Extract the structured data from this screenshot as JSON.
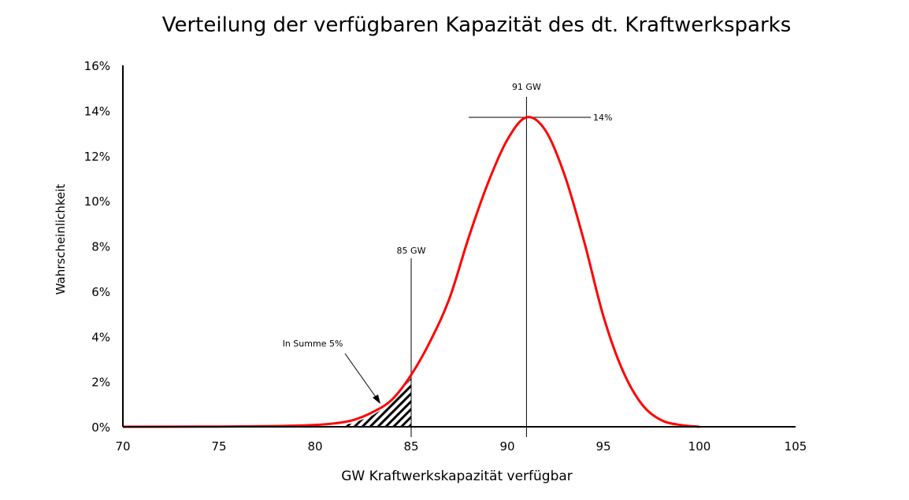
{
  "chart_data": {
    "type": "line",
    "title": "Verteilung der verfügbaren Kapazität des dt. Kraftwerksparks",
    "xlabel": "GW Kraftwerkskapazität verfügbar",
    "ylabel": "Wahrscheinlichkeit",
    "xlim": [
      70,
      105
    ],
    "ylim": [
      0,
      16
    ],
    "x_ticks": [
      "70",
      "75",
      "80",
      "85",
      "90",
      "95",
      "100",
      "105"
    ],
    "x_tick_values": [
      70,
      75,
      80,
      85,
      90,
      95,
      100,
      105
    ],
    "y_ticks": [
      "0%",
      "2%",
      "4%",
      "6%",
      "8%",
      "10%",
      "12%",
      "14%",
      "16%"
    ],
    "y_tick_values": [
      0,
      2,
      4,
      6,
      8,
      10,
      12,
      14,
      16
    ],
    "grid": false,
    "series": [
      {
        "name": "Wahrscheinlichkeit",
        "color": "#ff0000",
        "x": [
          70,
          75,
          78,
          80,
          81,
          82,
          83,
          84,
          85,
          86,
          87,
          88,
          89,
          90,
          91,
          92,
          93,
          94,
          95,
          96,
          97,
          98,
          99,
          100
        ],
        "y": [
          0,
          0.01,
          0.03,
          0.08,
          0.15,
          0.3,
          0.65,
          1.2,
          2.3,
          3.8,
          5.7,
          8.4,
          10.8,
          12.7,
          13.7,
          13.1,
          11.1,
          8.2,
          4.9,
          2.5,
          1.0,
          0.3,
          0.08,
          0
        ]
      }
    ],
    "shaded_region": {
      "x_from": 81.5,
      "x_to": 85,
      "pattern": "hatched",
      "label": "In Summe 5%"
    },
    "annotations": [
      {
        "text": "91 GW",
        "x": 91,
        "kind": "vertical-line"
      },
      {
        "text": "14%",
        "y": 13.7,
        "kind": "horizontal-line"
      },
      {
        "text": "85 GW",
        "x": 85,
        "kind": "vertical-line"
      }
    ]
  }
}
